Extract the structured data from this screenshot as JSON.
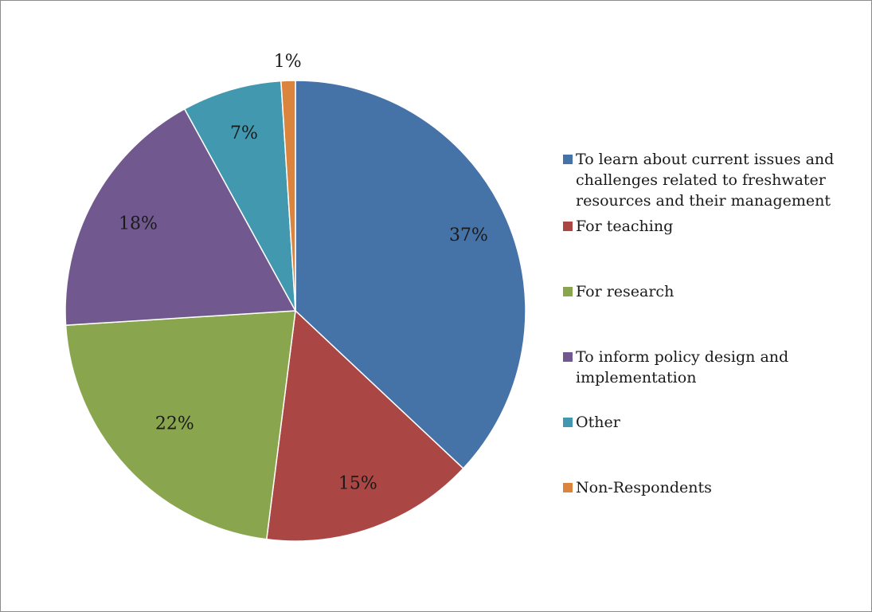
{
  "chart_data": {
    "type": "pie",
    "categories": [
      "To learn about current issues and challenges related to freshwater resources and their management",
      "For teaching",
      "For research",
      "To inform policy design and implementation",
      "Other",
      "Non-Respondents"
    ],
    "values": [
      37,
      15,
      22,
      18,
      7,
      1
    ],
    "value_labels": [
      "37%",
      "15%",
      "22%",
      "18%",
      "7%",
      "1%"
    ],
    "colors": [
      "#4572A7",
      "#AA4643",
      "#89A54E",
      "#71588F",
      "#4198AF",
      "#DB843D"
    ],
    "start_angle_deg": 0,
    "direction": "clockwise",
    "legend_position": "right",
    "title": ""
  }
}
